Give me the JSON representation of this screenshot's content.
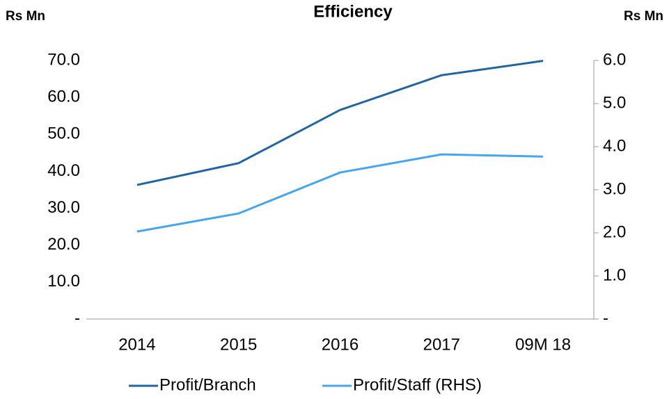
{
  "chart_data": {
    "type": "line",
    "title": "Efficiency",
    "y_label": "Rs Mn",
    "y2_label": "Rs Mn",
    "categories": [
      "2014",
      "2015",
      "2016",
      "2017",
      "09M 18"
    ],
    "series": [
      {
        "name": "Profit/Branch",
        "color": "#1f64a4",
        "values": [
          36.3,
          42.2,
          56.6,
          66.0,
          69.9
        ]
      },
      {
        "name": "Profit/Staff (RHS)",
        "color": "#44a6ee",
        "axis": "y2",
        "values": [
          2.03,
          2.45,
          3.4,
          3.82,
          3.77
        ]
      }
    ],
    "ylim": [
      0,
      70
    ],
    "yticks": [
      {
        "value": 0,
        "label": "-"
      },
      {
        "value": 10,
        "label": "10.0"
      },
      {
        "value": 20,
        "label": "20.0"
      },
      {
        "value": 30,
        "label": "30.0"
      },
      {
        "value": 40,
        "label": "40.0"
      },
      {
        "value": 50,
        "label": "50.0"
      },
      {
        "value": 60,
        "label": "60.0"
      },
      {
        "value": 70,
        "label": "70.0"
      }
    ],
    "y2lim": [
      0,
      6
    ],
    "y2ticks": [
      {
        "value": 0,
        "label": "-"
      },
      {
        "value": 1,
        "label": "1.0"
      },
      {
        "value": 2,
        "label": "2.0"
      },
      {
        "value": 3,
        "label": "3.0"
      },
      {
        "value": 4,
        "label": "4.0"
      },
      {
        "value": 5,
        "label": "5.0"
      },
      {
        "value": 6,
        "label": "6.0"
      }
    ],
    "legend": "bottom"
  }
}
